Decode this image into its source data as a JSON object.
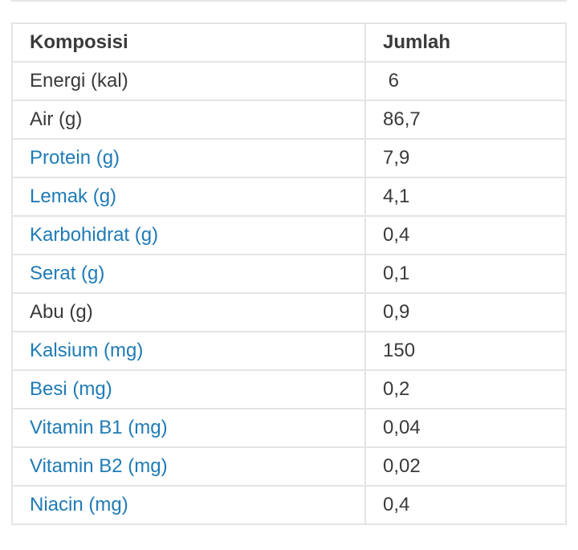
{
  "colors": {
    "link_text": "#1f7bb6",
    "body_text": "#3a3a3a",
    "border": "#e4e4e4"
  },
  "table": {
    "headers": [
      "Komposisi",
      "Jumlah"
    ],
    "rows": [
      {
        "component": "Energi (kal)",
        "amount": " 6",
        "linked": false
      },
      {
        "component": "Air (g)",
        "amount": "86,7",
        "linked": false
      },
      {
        "component": "Protein (g)",
        "amount": "7,9",
        "linked": true
      },
      {
        "component": "Lemak (g)",
        "amount": "4,1",
        "linked": true
      },
      {
        "component": "Karbohidrat (g)",
        "amount": "0,4",
        "linked": true
      },
      {
        "component": "Serat (g)",
        "amount": "0,1",
        "linked": true
      },
      {
        "component": "Abu (g)",
        "amount": "0,9",
        "linked": false
      },
      {
        "component": "Kalsium (mg)",
        "amount": "150",
        "linked": true
      },
      {
        "component": "Besi (mg)",
        "amount": "0,2",
        "linked": true
      },
      {
        "component": "Vitamin B1 (mg)",
        "amount": "0,04",
        "linked": true
      },
      {
        "component": "Vitamin B2 (mg)",
        "amount": "0,02",
        "linked": true
      },
      {
        "component": "Niacin (mg)",
        "amount": "0,4",
        "linked": true
      }
    ]
  }
}
